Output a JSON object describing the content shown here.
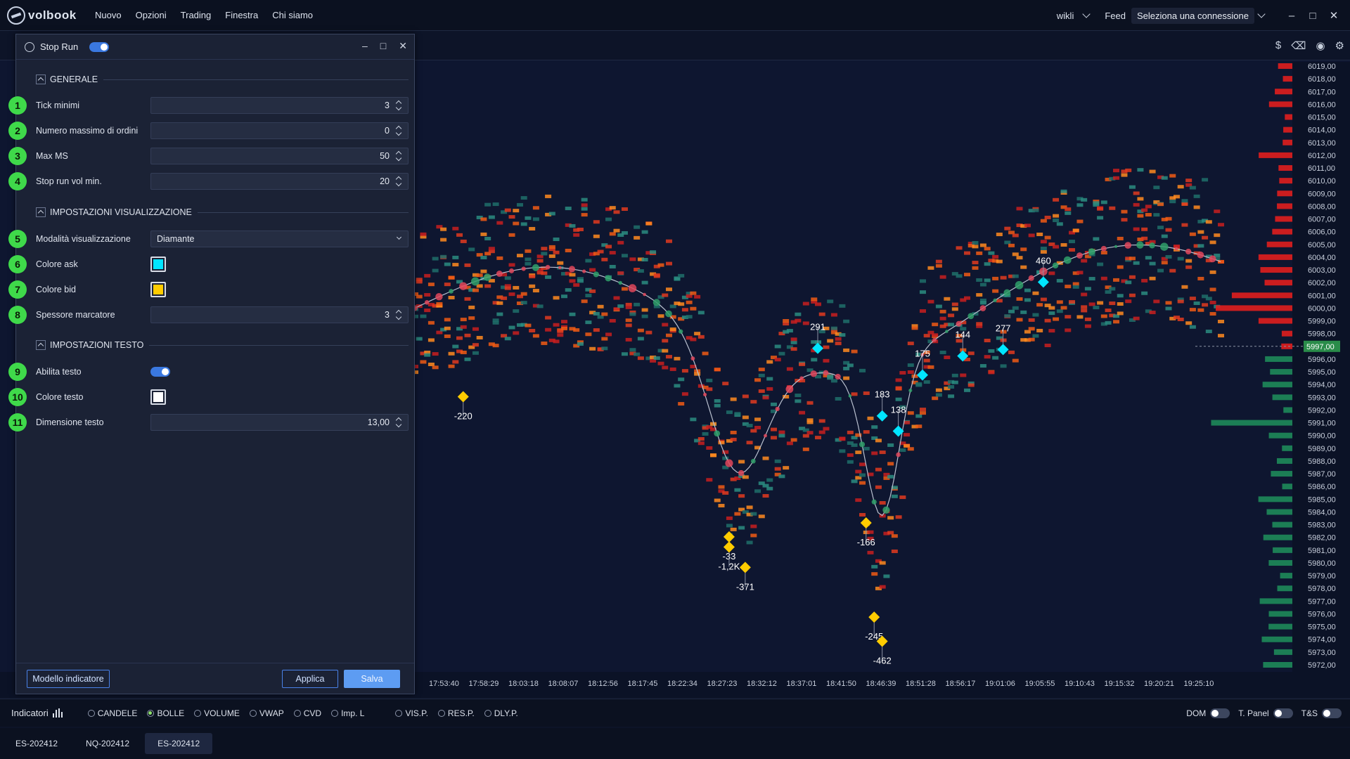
{
  "app": {
    "logo_text": "volbook"
  },
  "menu": [
    "Nuovo",
    "Opzioni",
    "Trading",
    "Finestra",
    "Chi siamo"
  ],
  "topbar": {
    "user": "wikli",
    "feed_label": "Feed",
    "connection": "Seleziona una connessione"
  },
  "window_controls": [
    "–",
    "□",
    "✕"
  ],
  "chart_icons": [
    "dollar-icon",
    "eraser-icon",
    "record-icon",
    "settings-icon"
  ],
  "dialog": {
    "title": "Stop Run",
    "enabled": true,
    "sections": {
      "general": "GENERALE",
      "display": "IMPOSTAZIONI VISUALIZZAZIONE",
      "text": "IMPOSTAZIONI TESTO"
    },
    "fields": [
      {
        "num": "1",
        "label": "Tick minimi",
        "value": "3"
      },
      {
        "num": "2",
        "label": "Numero massimo di ordini",
        "value": "0"
      },
      {
        "num": "3",
        "label": "Max MS",
        "value": "50"
      },
      {
        "num": "4",
        "label": "Stop run vol min.",
        "value": "20"
      },
      {
        "num": "5",
        "label": "Modalità visualizzazione",
        "value": "Diamante"
      },
      {
        "num": "6",
        "label": "Colore ask",
        "color": "#00e5ff"
      },
      {
        "num": "7",
        "label": "Colore bid",
        "color": "#ffcc00"
      },
      {
        "num": "8",
        "label": "Spessore marcatore",
        "value": "3"
      },
      {
        "num": "9",
        "label": "Abilita testo",
        "enabled": true
      },
      {
        "num": "10",
        "label": "Colore testo",
        "color": "#ffffff"
      },
      {
        "num": "11",
        "label": "Dimensione testo",
        "value": "13,00"
      }
    ],
    "buttons": {
      "model": "Modello indicatore",
      "apply": "Applica",
      "save": "Salva"
    }
  },
  "chart_data": {
    "type": "scatter",
    "price_ticks": [
      "6019,00",
      "6018,00",
      "6017,00",
      "6016,00",
      "6015,00",
      "6014,00",
      "6013,00",
      "6012,00",
      "6011,00",
      "6010,00",
      "6009,00",
      "6008,00",
      "6007,00",
      "6006,00",
      "6005,00",
      "6004,00",
      "6003,00",
      "6002,00",
      "6001,00",
      "6000,00",
      "5999,00",
      "5998,00",
      "5997,00",
      "5996,00",
      "5995,00",
      "5994,00",
      "5993,00",
      "5992,00",
      "5991,00",
      "5990,00",
      "5989,00",
      "5988,00",
      "5987,00",
      "5986,00",
      "5985,00",
      "5984,00",
      "5983,00",
      "5982,00",
      "5981,00",
      "5980,00",
      "5979,00",
      "5978,00",
      "5977,00",
      "5976,00",
      "5975,00",
      "5974,00",
      "5973,00",
      "5972,00"
    ],
    "current_price": "5997,00",
    "time_ticks": [
      "17:53:40",
      "17:58:29",
      "18:03:18",
      "18:08:07",
      "18:12:56",
      "18:17:45",
      "18:22:34",
      "18:27:23",
      "18:32:12",
      "18:37:01",
      "18:41:50",
      "18:46:39",
      "18:51:28",
      "18:56:17",
      "19:01:06",
      "19:05:55",
      "19:10:43",
      "19:15:32",
      "19:20:21",
      "19:25:10"
    ],
    "stop_run_labels": [
      {
        "text": "-220",
        "t": 0.06,
        "p": 5991.5
      },
      {
        "text": "-33",
        "t": 0.39,
        "p": 5980.5
      },
      {
        "text": "-1,2K",
        "t": 0.39,
        "p": 5979.7
      },
      {
        "text": "-371",
        "t": 0.41,
        "p": 5978.1
      },
      {
        "text": "291",
        "t": 0.5,
        "p": 5998.5
      },
      {
        "text": "183",
        "t": 0.58,
        "p": 5993.2
      },
      {
        "text": "138",
        "t": 0.6,
        "p": 5992.0
      },
      {
        "text": "-166",
        "t": 0.56,
        "p": 5981.6
      },
      {
        "text": "175",
        "t": 0.63,
        "p": 5996.4
      },
      {
        "text": "144",
        "t": 0.68,
        "p": 5997.9
      },
      {
        "text": "277",
        "t": 0.73,
        "p": 5998.4
      },
      {
        "text": "460",
        "t": 0.78,
        "p": 6003.7
      },
      {
        "text": "-245",
        "t": 0.57,
        "p": 5974.2
      },
      {
        "text": "-462",
        "t": 0.58,
        "p": 5972.3
      }
    ]
  },
  "bottom": {
    "indicators_label": "Indicatori",
    "modes": [
      {
        "label": "CANDELE",
        "on": false
      },
      {
        "label": "BOLLE",
        "on": true
      },
      {
        "label": "VOLUME",
        "on": false
      },
      {
        "label": "VWAP",
        "on": false
      },
      {
        "label": "CVD",
        "on": false
      },
      {
        "label": "Imp. L",
        "on": false
      },
      {
        "label": "VIS.P.",
        "on": false
      },
      {
        "label": "RES.P.",
        "on": false
      },
      {
        "label": "DLY.P.",
        "on": false
      }
    ],
    "toggles": [
      {
        "label": "DOM",
        "on": false
      },
      {
        "label": "T. Panel",
        "on": false
      },
      {
        "label": "T&S",
        "on": false
      }
    ]
  },
  "tabs": [
    {
      "label": "ES-202412",
      "active": false
    },
    {
      "label": "NQ-202412",
      "active": false
    },
    {
      "label": "ES-202412",
      "active": true
    }
  ]
}
